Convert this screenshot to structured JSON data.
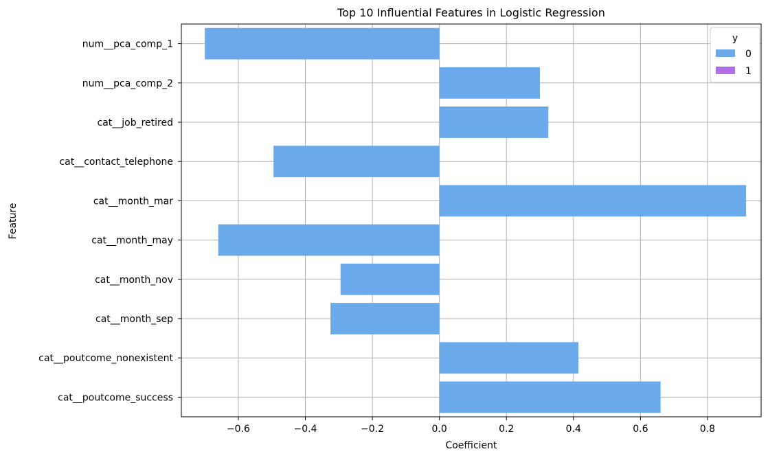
{
  "chart_data": {
    "type": "bar",
    "orientation": "horizontal",
    "title": "Top 10 Influential Features in Logistic Regression",
    "xlabel": "Coefficient",
    "ylabel": "Feature",
    "xlim": [
      -0.77,
      0.96
    ],
    "xticks": [
      -0.6,
      -0.4,
      -0.2,
      0.0,
      0.2,
      0.4,
      0.6,
      0.8
    ],
    "xtick_labels": [
      "−0.6",
      "−0.4",
      "−0.2",
      "0.0",
      "0.2",
      "0.4",
      "0.6",
      "0.8"
    ],
    "grid": true,
    "categories": [
      "num__pca_comp_1",
      "num__pca_comp_2",
      "cat__job_retired",
      "cat__contact_telephone",
      "cat__month_mar",
      "cat__month_may",
      "cat__month_nov",
      "cat__month_sep",
      "cat__poutcome_nonexistent",
      "cat__poutcome_success"
    ],
    "series": [
      {
        "name": "0",
        "color": "#6aa9ea",
        "values": [
          -0.7,
          0.3,
          0.325,
          -0.495,
          0.915,
          -0.66,
          -0.295,
          -0.325,
          0.415,
          0.66
        ]
      },
      {
        "name": "1",
        "color": "#b06ee8",
        "values": [
          null,
          null,
          null,
          null,
          null,
          null,
          null,
          null,
          null,
          null
        ]
      }
    ],
    "legend": {
      "title": "y",
      "placement": "top-right"
    }
  }
}
